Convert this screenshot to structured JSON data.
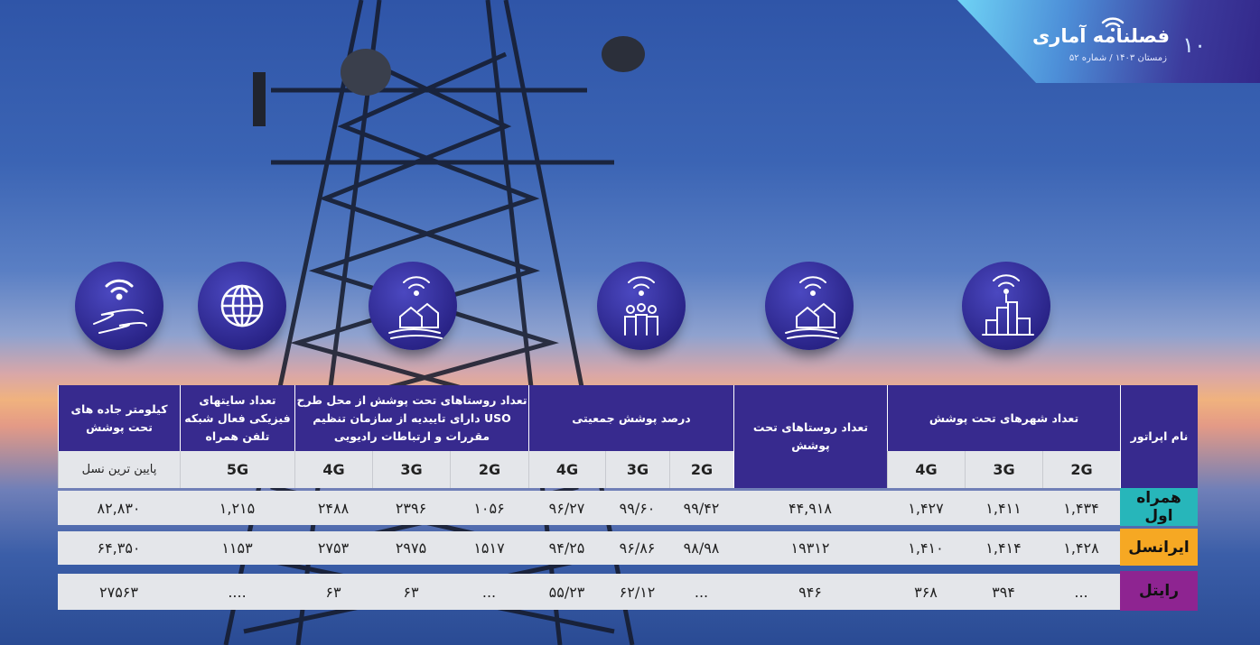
{
  "header": {
    "title": "فصلنامه آماری",
    "subtitle": "زمستان ۱۴۰۳ /  شماره ۵۲",
    "page_number": "۱۰"
  },
  "icons": [
    "road-wifi-icon",
    "globe-icon",
    "village-wifi-icon",
    "people-wifi-icon",
    "village-wifi-icon",
    "city-wifi-icon"
  ],
  "table": {
    "group_headers": {
      "operator": "نام اپراتور",
      "cities": "تعداد شهرهای تحت پوشش",
      "villages": "تعداد روستاهای تحت پوشش",
      "population": "درصد پوشش جمعیتی",
      "uso": "تعداد روستاهای تحت پوشش از محل طرح USO دارای تاییدیه از سازمان تنظیم مقررات و ارتباطات رادیویی",
      "sites": "تعداد سایتهای فیزیکی فعال شبکه تلفن همراه",
      "roads": "کیلومتر جاده های تحت پوشش"
    },
    "sub_headers": {
      "cities": [
        "2G",
        "3G",
        "4G"
      ],
      "population": [
        "2G",
        "3G",
        "4G"
      ],
      "uso": [
        "2G",
        "3G",
        "4G"
      ],
      "sites": "5G",
      "roads": "پایین ترین نسل"
    },
    "rows": [
      {
        "operator": "همراه اول",
        "color": "#27b6ba",
        "cities": [
          "۱,۴۳۴",
          "۱,۴۱۱",
          "۱,۴۲۷"
        ],
        "villages": "۴۴,۹۱۸",
        "population": [
          "۹۹/۴۲",
          "۹۹/۶۰",
          "۹۶/۲۷"
        ],
        "uso": [
          "۱۰۵۶",
          "۲۳۹۶",
          "۲۴۸۸"
        ],
        "sites": "۱,۲۱۵",
        "roads": "۸۲,۸۳۰"
      },
      {
        "operator": "ایرانسل",
        "color": "#f6a823",
        "cities": [
          "۱,۴۲۸",
          "۱,۴۱۴",
          "۱,۴۱۰"
        ],
        "villages": "۱۹۳۱۲",
        "population": [
          "۹۸/۹۸",
          "۹۶/۸۶",
          "۹۴/۲۵"
        ],
        "uso": [
          "۱۵۱۷",
          "۲۹۷۵",
          "۲۷۵۳"
        ],
        "sites": "۱۱۵۳",
        "roads": "۶۴,۳۵۰"
      },
      {
        "operator": "رایتل",
        "color": "#8e2491",
        "cities": [
          "...",
          "۳۹۴",
          "۳۶۸"
        ],
        "villages": "۹۴۶",
        "population": [
          "...",
          "۶۲/۱۲",
          "۵۵/۲۳"
        ],
        "uso": [
          "...",
          "۶۳",
          "۶۳"
        ],
        "sites": "....",
        "roads": "۲۷۵۶۳"
      }
    ]
  }
}
